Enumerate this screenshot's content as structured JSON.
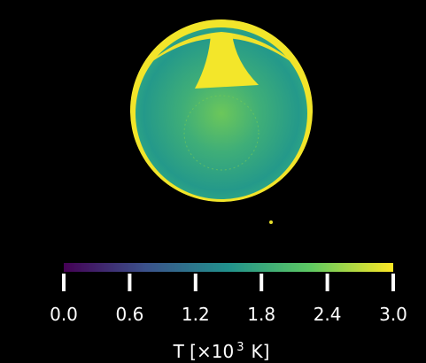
{
  "chart_data": {
    "type": "colorbar",
    "colormap": [
      "#440154",
      "#3b528b",
      "#21918c",
      "#5ec962",
      "#fde725"
    ],
    "clim": [
      0,
      3
    ],
    "ticks": [
      {
        "value": 0,
        "label": "0.0"
      },
      {
        "value": 0.6,
        "label": "0.6"
      },
      {
        "value": 1.2,
        "label": "1.2"
      },
      {
        "value": 1.8,
        "label": "1.8"
      },
      {
        "value": 2.4,
        "label": "2.4"
      },
      {
        "value": 3,
        "label": "3.0"
      }
    ],
    "colorbar_label": "T [×10",
    "colorbar_label_exponent": "3",
    "colorbar_label_unit": "K]"
  }
}
